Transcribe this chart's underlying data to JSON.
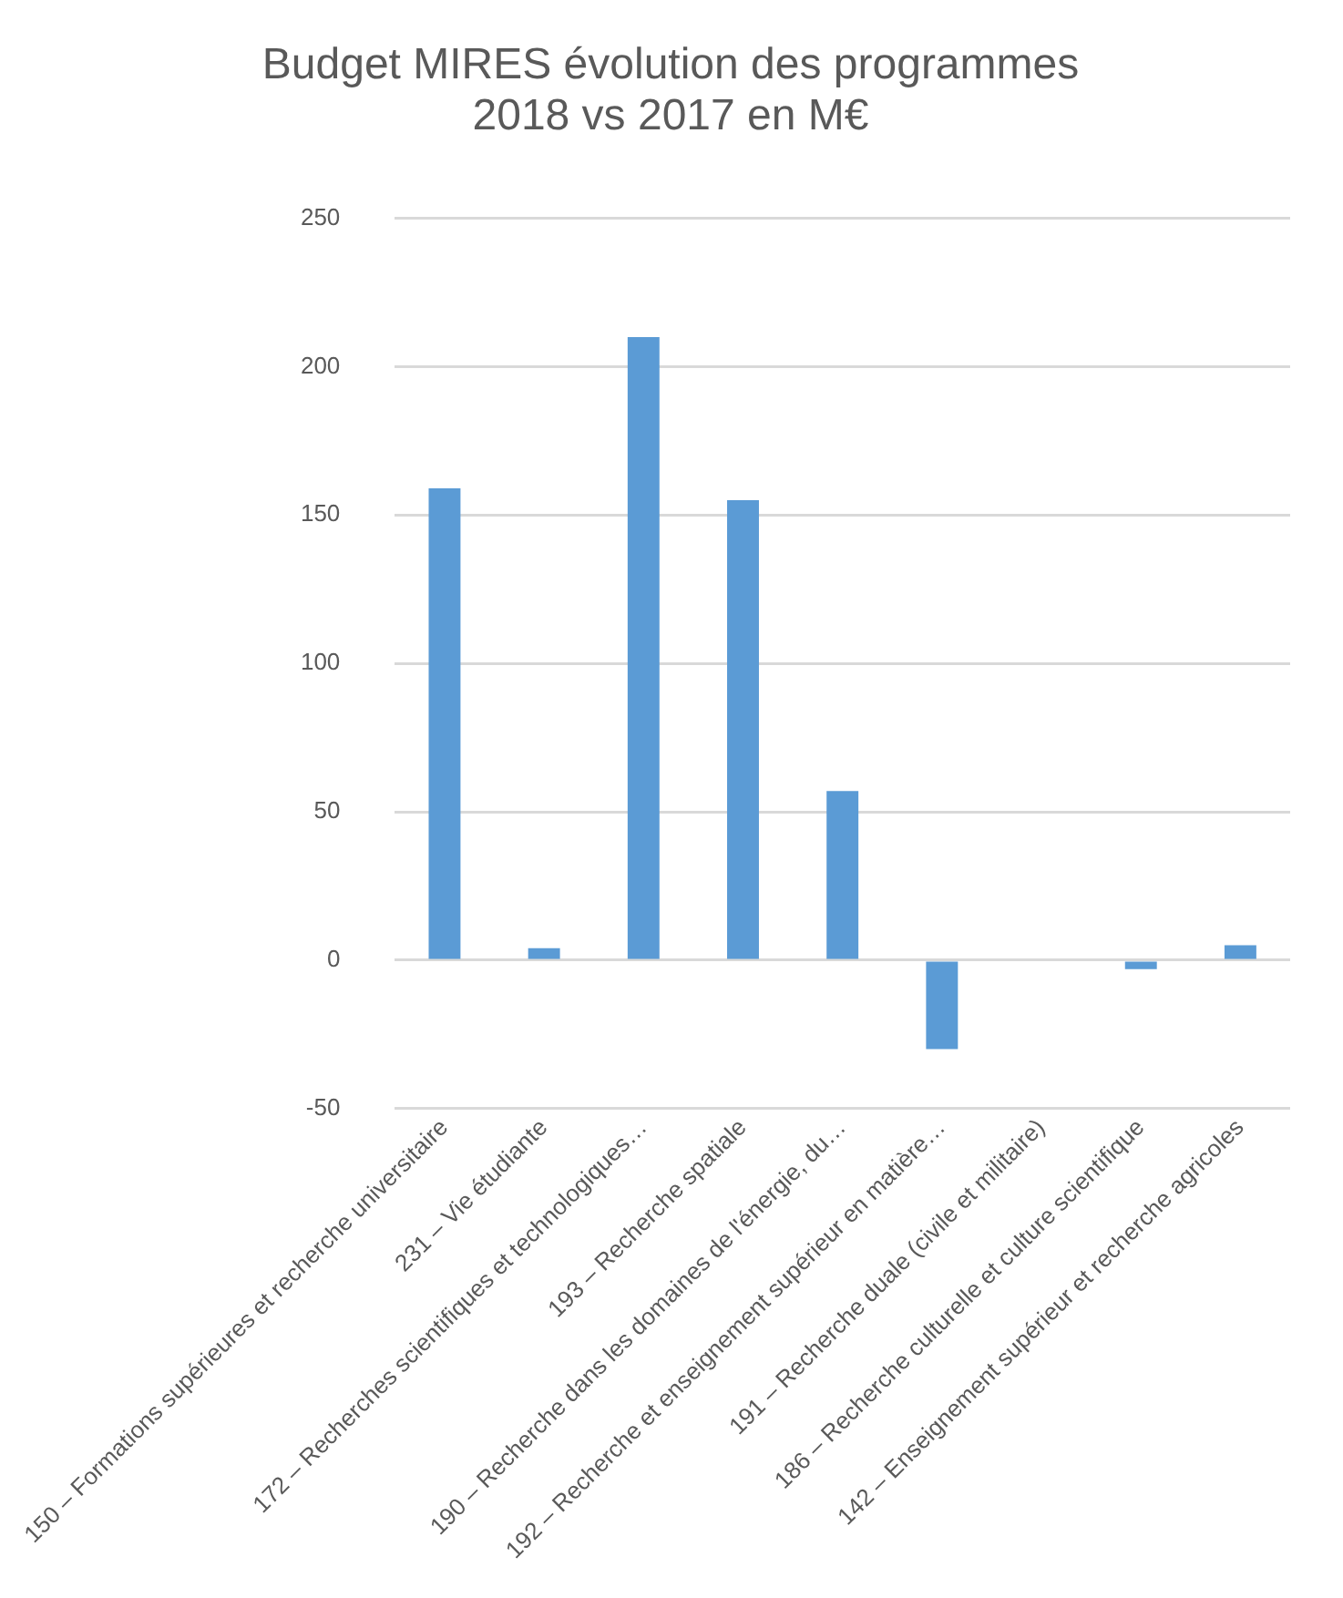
{
  "chart_data": {
    "type": "bar",
    "title": "Budget MIRES évolution des programmes 2018 vs 2017 en M€",
    "categories": [
      "150 – Formations supérieures et recherche universitaire",
      "231 – Vie étudiante",
      "172 – Recherches scientifiques et technologiques…",
      "193 – Recherche spatiale",
      "190 – Recherche dans les domaines de l'énergie, du…",
      "192 – Recherche et enseignement supérieur en matière…",
      "191 – Recherche duale (civile et militaire)",
      "186 – Recherche culturelle et culture scientifique",
      "142 – Enseignement supérieur et recherche agricoles"
    ],
    "values": [
      159,
      4,
      210,
      155,
      57,
      -30,
      0,
      -3,
      5
    ],
    "color": "#5b9bd5",
    "ylim": [
      -50,
      250
    ],
    "yticks": [
      -50,
      0,
      50,
      100,
      150,
      200,
      250
    ],
    "grid": "y",
    "legend": false
  }
}
